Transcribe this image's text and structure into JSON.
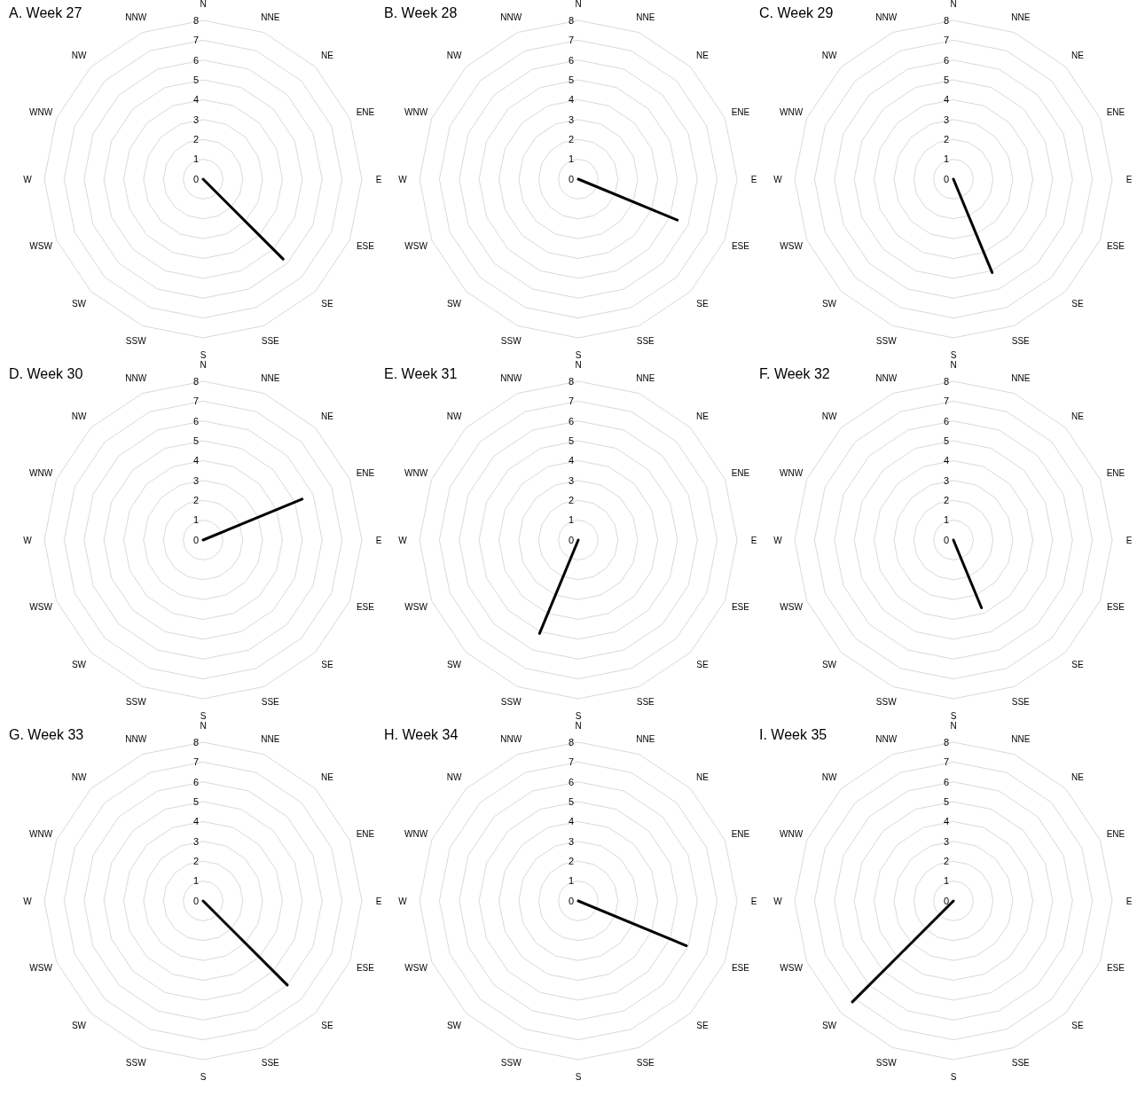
{
  "chart_data": [
    {
      "type": "radar",
      "title": "A. Week 27",
      "categories": [
        "N",
        "NNE",
        "NE",
        "ENE",
        "E",
        "ESE",
        "SE",
        "SSE",
        "S",
        "SSW",
        "SW",
        "WSW",
        "W",
        "WNW",
        "NW",
        "NNW"
      ],
      "series": [
        {
          "color": "#000000",
          "values": [
            0,
            0,
            0,
            0,
            0,
            0,
            5.7,
            0,
            0,
            0,
            0,
            0,
            0,
            0,
            0,
            0
          ]
        }
      ],
      "ylim": [
        0,
        8
      ],
      "yticks": [
        0,
        1,
        2,
        3,
        4,
        5,
        6,
        7,
        8
      ],
      "grid": true
    },
    {
      "type": "radar",
      "title": "B. Week 28",
      "categories": [
        "N",
        "NNE",
        "NE",
        "ENE",
        "E",
        "ESE",
        "SE",
        "SSE",
        "S",
        "SSW",
        "SW",
        "WSW",
        "W",
        "WNW",
        "NW",
        "NNW"
      ],
      "series": [
        {
          "color": "#000000",
          "values": [
            0,
            0,
            0,
            0,
            0,
            5.4,
            0,
            0,
            0,
            0,
            0,
            0,
            0,
            0,
            0,
            0
          ]
        }
      ],
      "ylim": [
        0,
        8
      ],
      "yticks": [
        0,
        1,
        2,
        3,
        4,
        5,
        6,
        7,
        8
      ],
      "grid": true
    },
    {
      "type": "radar",
      "title": "C. Week 29",
      "categories": [
        "N",
        "NNE",
        "NE",
        "ENE",
        "E",
        "ESE",
        "SE",
        "SSE",
        "S",
        "SSW",
        "SW",
        "WSW",
        "W",
        "WNW",
        "NW",
        "NNW"
      ],
      "series": [
        {
          "color": "#000000",
          "values": [
            0,
            0,
            0,
            0,
            0,
            0,
            0,
            5.1,
            0,
            0,
            0,
            0,
            0,
            0,
            0,
            0
          ]
        }
      ],
      "ylim": [
        0,
        8
      ],
      "yticks": [
        0,
        1,
        2,
        3,
        4,
        5,
        6,
        7,
        8
      ],
      "grid": true
    },
    {
      "type": "radar",
      "title": "D. Week 30",
      "categories": [
        "N",
        "NNE",
        "NE",
        "ENE",
        "E",
        "ESE",
        "SE",
        "SSE",
        "S",
        "SSW",
        "SW",
        "WSW",
        "W",
        "WNW",
        "NW",
        "NNW"
      ],
      "series": [
        {
          "color": "#000000",
          "values": [
            0,
            0,
            0,
            5.4,
            0,
            0,
            0,
            0,
            0,
            0,
            0,
            0,
            0,
            0,
            0,
            0
          ]
        }
      ],
      "ylim": [
        0,
        8
      ],
      "yticks": [
        0,
        1,
        2,
        3,
        4,
        5,
        6,
        7,
        8
      ],
      "grid": true
    },
    {
      "type": "radar",
      "title": "E. Week 31",
      "categories": [
        "N",
        "NNE",
        "NE",
        "ENE",
        "E",
        "ESE",
        "SE",
        "SSE",
        "S",
        "SSW",
        "SW",
        "WSW",
        "W",
        "WNW",
        "NW",
        "NNW"
      ],
      "series": [
        {
          "color": "#000000",
          "values": [
            0,
            0,
            0,
            0,
            0,
            0,
            0,
            0,
            0,
            5.1,
            0,
            0,
            0,
            0,
            0,
            0
          ]
        }
      ],
      "ylim": [
        0,
        8
      ],
      "yticks": [
        0,
        1,
        2,
        3,
        4,
        5,
        6,
        7,
        8
      ],
      "grid": true
    },
    {
      "type": "radar",
      "title": "F. Week 32",
      "categories": [
        "N",
        "NNE",
        "NE",
        "ENE",
        "E",
        "ESE",
        "SE",
        "SSE",
        "S",
        "SSW",
        "SW",
        "WSW",
        "W",
        "WNW",
        "NW",
        "NNW"
      ],
      "series": [
        {
          "color": "#000000",
          "values": [
            0,
            0,
            0,
            0,
            0,
            0,
            0,
            3.7,
            0,
            0,
            0,
            0,
            0,
            0,
            0,
            0
          ]
        }
      ],
      "ylim": [
        0,
        8
      ],
      "yticks": [
        0,
        1,
        2,
        3,
        4,
        5,
        6,
        7,
        8
      ],
      "grid": true
    },
    {
      "type": "radar",
      "title": "G. Week 33",
      "categories": [
        "N",
        "NNE",
        "NE",
        "ENE",
        "E",
        "ESE",
        "SE",
        "SSE",
        "S",
        "SSW",
        "SW",
        "WSW",
        "W",
        "WNW",
        "NW",
        "NNW"
      ],
      "series": [
        {
          "color": "#000000",
          "values": [
            0,
            0,
            0,
            0,
            0,
            0,
            6,
            0,
            0,
            0,
            0,
            0,
            0,
            0,
            0,
            0
          ]
        }
      ],
      "ylim": [
        0,
        8
      ],
      "yticks": [
        0,
        1,
        2,
        3,
        4,
        5,
        6,
        7,
        8
      ],
      "grid": true
    },
    {
      "type": "radar",
      "title": "H. Week 34",
      "categories": [
        "N",
        "NNE",
        "NE",
        "ENE",
        "E",
        "ESE",
        "SE",
        "SSE",
        "S",
        "SSW",
        "SW",
        "WSW",
        "W",
        "WNW",
        "NW",
        "NNW"
      ],
      "series": [
        {
          "color": "#000000",
          "values": [
            0,
            0,
            0,
            0,
            0,
            5.9,
            0,
            0,
            0,
            0,
            0,
            0,
            0,
            0,
            0,
            0
          ]
        }
      ],
      "ylim": [
        0,
        8
      ],
      "yticks": [
        0,
        1,
        2,
        3,
        4,
        5,
        6,
        7,
        8
      ],
      "grid": true
    },
    {
      "type": "radar",
      "title": "I. Week 35",
      "categories": [
        "N",
        "NNE",
        "NE",
        "ENE",
        "E",
        "ESE",
        "SE",
        "SSE",
        "S",
        "SSW",
        "SW",
        "WSW",
        "W",
        "WNW",
        "NW",
        "NNW"
      ],
      "series": [
        {
          "color": "#000000",
          "values": [
            0,
            0,
            0,
            0,
            0,
            0,
            0,
            0,
            0,
            0,
            7.2,
            0,
            0,
            0,
            0,
            0
          ]
        }
      ],
      "ylim": [
        0,
        8
      ],
      "yticks": [
        0,
        1,
        2,
        3,
        4,
        5,
        6,
        7,
        8
      ],
      "grid": true
    }
  ]
}
